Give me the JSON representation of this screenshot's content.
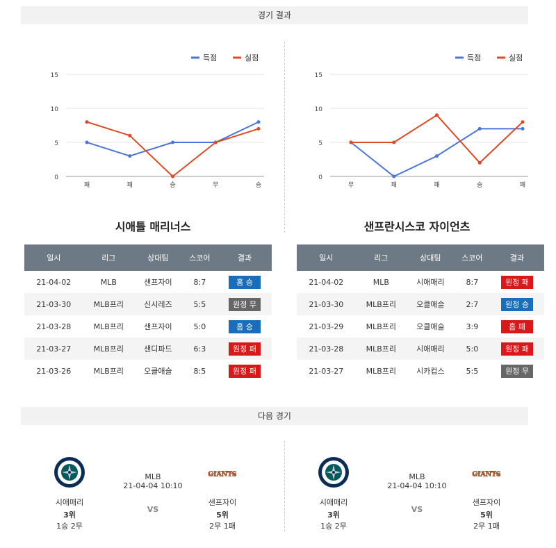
{
  "header": {
    "title": "경기 결과"
  },
  "charts": [
    {
      "legend": {
        "scored": "득점",
        "conceded": "실점"
      },
      "colors": {
        "scored": "#4a74d9",
        "conceded": "#dd4a25"
      },
      "yticks": [
        "15",
        "10",
        "5",
        "0"
      ],
      "categories": [
        "패",
        "패",
        "승",
        "무",
        "승"
      ],
      "scored": [
        5,
        3,
        5,
        5,
        8
      ],
      "conceded": [
        8,
        6,
        0,
        5,
        7
      ]
    },
    {
      "legend": {
        "scored": "득점",
        "conceded": "실점"
      },
      "colors": {
        "scored": "#4a74d9",
        "conceded": "#dd4a25"
      },
      "yticks": [
        "15",
        "10",
        "5",
        "0"
      ],
      "categories": [
        "무",
        "패",
        "패",
        "승",
        "패"
      ],
      "scored": [
        5,
        0,
        3,
        7,
        7
      ],
      "conceded": [
        5,
        5,
        9,
        2,
        8
      ]
    }
  ],
  "chart_data": [
    {
      "type": "line",
      "categories": [
        "패",
        "패",
        "승",
        "무",
        "승"
      ],
      "series": [
        {
          "name": "득점",
          "values": [
            5,
            3,
            5,
            5,
            8
          ]
        },
        {
          "name": "실점",
          "values": [
            8,
            6,
            0,
            5,
            7
          ]
        }
      ],
      "ylim": [
        0,
        15
      ],
      "legend": "top-right"
    },
    {
      "type": "line",
      "categories": [
        "무",
        "패",
        "패",
        "승",
        "패"
      ],
      "series": [
        {
          "name": "득점",
          "values": [
            5,
            0,
            3,
            7,
            7
          ]
        },
        {
          "name": "실점",
          "values": [
            5,
            5,
            9,
            2,
            8
          ]
        }
      ],
      "ylim": [
        0,
        15
      ],
      "legend": "top-right"
    }
  ],
  "teams": [
    {
      "title": "시애틀 매리너스",
      "headers": [
        "일시",
        "리그",
        "상대팀",
        "스코어",
        "결과"
      ],
      "rows": [
        {
          "date": "21-04-02",
          "league": "MLB",
          "opponent": "샌프자이",
          "score": "8:7",
          "result": "홈 승",
          "color": "blue"
        },
        {
          "date": "21-03-30",
          "league": "MLB프리",
          "opponent": "신시레즈",
          "score": "5:5",
          "result": "원정 무",
          "color": "gray"
        },
        {
          "date": "21-03-28",
          "league": "MLB프리",
          "opponent": "샌프자이",
          "score": "5:0",
          "result": "홈 승",
          "color": "blue"
        },
        {
          "date": "21-03-27",
          "league": "MLB프리",
          "opponent": "샌디파드",
          "score": "6:3",
          "result": "원정 패",
          "color": "red"
        },
        {
          "date": "21-03-26",
          "league": "MLB프리",
          "opponent": "오클애슬",
          "score": "8:5",
          "result": "원정 패",
          "color": "red"
        }
      ]
    },
    {
      "title": "샌프란시스코 자이언츠",
      "headers": [
        "일시",
        "리그",
        "상대팀",
        "스코어",
        "결과"
      ],
      "rows": [
        {
          "date": "21-04-02",
          "league": "MLB",
          "opponent": "시애매리",
          "score": "8:7",
          "result": "원정 패",
          "color": "red"
        },
        {
          "date": "21-03-30",
          "league": "MLB프리",
          "opponent": "오클애슬",
          "score": "2:7",
          "result": "원정 승",
          "color": "blue"
        },
        {
          "date": "21-03-29",
          "league": "MLB프리",
          "opponent": "오클애슬",
          "score": "3:9",
          "result": "홈 패",
          "color": "red"
        },
        {
          "date": "21-03-28",
          "league": "MLB프리",
          "opponent": "시애매리",
          "score": "5:0",
          "result": "원정 패",
          "color": "red"
        },
        {
          "date": "21-03-27",
          "league": "MLB프리",
          "opponent": "시카컵스",
          "score": "5:5",
          "result": "원정 무",
          "color": "gray"
        }
      ]
    }
  ],
  "next": {
    "title": "다음 경기",
    "matches": [
      {
        "league": "MLB",
        "datetime": "21-04-04 10:10",
        "vs": "VS",
        "home": {
          "name": "시애매리",
          "rank": "3위",
          "record": "1승 2무",
          "logo": "mariners-logo"
        },
        "away": {
          "name": "샌프자이",
          "rank": "5위",
          "record": "2무 1패",
          "logo": "giants-logo",
          "logo_text": "GIANTS"
        }
      },
      {
        "league": "MLB",
        "datetime": "21-04-04 10:10",
        "vs": "VS",
        "home": {
          "name": "시애매리",
          "rank": "3위",
          "record": "1승 2무",
          "logo": "mariners-logo"
        },
        "away": {
          "name": "샌프자이",
          "rank": "5위",
          "record": "2무 1패",
          "logo": "giants-logo",
          "logo_text": "GIANTS"
        }
      }
    ]
  }
}
